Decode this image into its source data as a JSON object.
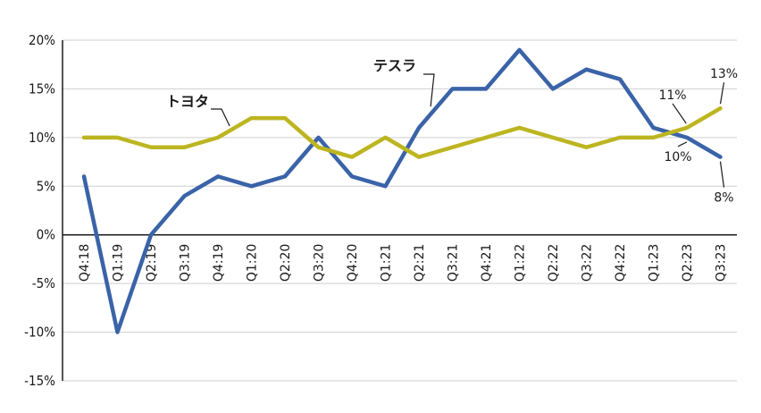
{
  "chart_data": {
    "type": "line",
    "title": "",
    "xlabel": "",
    "ylabel": "",
    "ylim": [
      -15,
      20
    ],
    "yticks": [
      20,
      15,
      10,
      5,
      0,
      -5,
      -10,
      -15
    ],
    "ytick_labels": [
      "20%",
      "15%",
      "10%",
      "5%",
      "0%",
      "-5%",
      "-10%",
      "-15%"
    ],
    "categories": [
      "Q4:18",
      "Q1:19",
      "Q2:19",
      "Q3:19",
      "Q4:19",
      "Q1:20",
      "Q2:20",
      "Q3:20",
      "Q4:20",
      "Q1:21",
      "Q2:21",
      "Q3:21",
      "Q4:21",
      "Q1:22",
      "Q2:22",
      "Q3:22",
      "Q4:22",
      "Q1:23",
      "Q2:23",
      "Q3:23"
    ],
    "grid": true,
    "series": [
      {
        "name": "テスラ",
        "color": "#3a63a8",
        "values": [
          6,
          -10,
          0,
          4,
          6,
          5,
          6,
          10,
          6,
          5,
          11,
          15,
          15,
          19,
          15,
          17,
          16,
          11,
          10,
          8
        ]
      },
      {
        "name": "トヨタ",
        "color": "#bdb520",
        "values": [
          10,
          10,
          9,
          9,
          10,
          12,
          12,
          9,
          8,
          10,
          8,
          9,
          10,
          11,
          10,
          9,
          10,
          10,
          11,
          13
        ]
      }
    ],
    "annotations": [
      {
        "text": "13%",
        "series": 1,
        "index": 19
      },
      {
        "text": "11%",
        "series": 1,
        "index": 18
      },
      {
        "text": "10%",
        "series": 0,
        "index": 18
      },
      {
        "text": "8%",
        "series": 0,
        "index": 19
      }
    ]
  }
}
